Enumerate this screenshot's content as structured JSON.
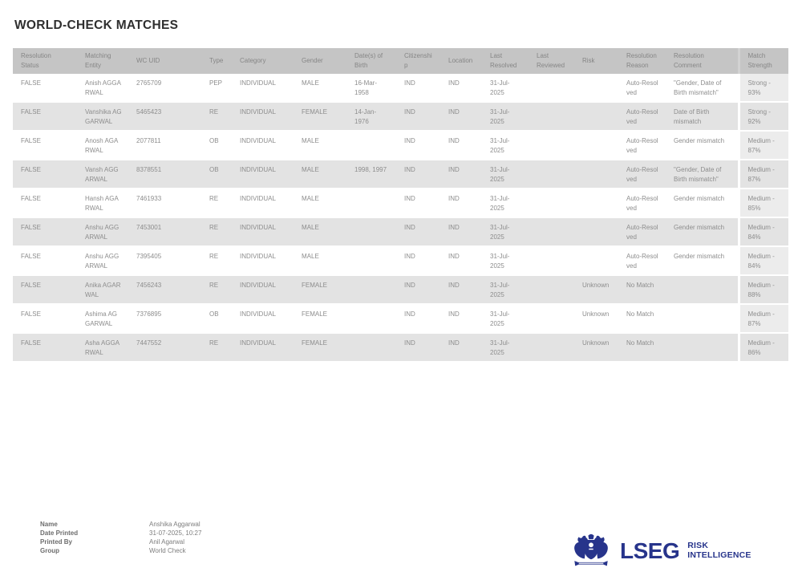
{
  "page": {
    "title": "WORLD-CHECK MATCHES"
  },
  "table": {
    "columns": [
      {
        "key": "resolution_status",
        "label": "Resolution Status"
      },
      {
        "key": "matching_entity",
        "label": "Matching Entity"
      },
      {
        "key": "wc_uid",
        "label": "WC UID"
      },
      {
        "key": "type",
        "label": "Type"
      },
      {
        "key": "category",
        "label": "Category"
      },
      {
        "key": "gender",
        "label": "Gender"
      },
      {
        "key": "date_of_birth",
        "label": "Date(s) of Birth"
      },
      {
        "key": "citizenship",
        "label": "Citizenship"
      },
      {
        "key": "location",
        "label": "Location"
      },
      {
        "key": "last_resolved",
        "label": "Last Resolved"
      },
      {
        "key": "last_reviewed",
        "label": "Last Reviewed"
      },
      {
        "key": "risk",
        "label": "Risk"
      },
      {
        "key": "resolution_reason",
        "label": "Resolution Reason"
      },
      {
        "key": "resolution_comment",
        "label": "Resolution Comment"
      },
      {
        "key": "match_strength",
        "label": "Match Strength"
      }
    ],
    "rows": [
      {
        "cells": [
          "FALSE",
          "Anish AGGARWAL",
          "2765709",
          "PEP",
          "INDIVIDUAL",
          "MALE",
          "16-Mar-1958",
          "IND",
          "IND",
          "31-Jul-2025",
          "",
          "",
          "Auto-Resolved",
          "\"Gender, Date of Birth mismatch\"",
          "Strong - 93%"
        ]
      },
      {
        "cells": [
          "FALSE",
          "Vanshika AGGARWAL",
          "5465423",
          "RE",
          "INDIVIDUAL",
          "FEMALE",
          "14-Jan-1976",
          "IND",
          "IND",
          "31-Jul-2025",
          "",
          "",
          "Auto-Resolved",
          "Date of Birth mismatch",
          "Strong - 92%"
        ]
      },
      {
        "cells": [
          "FALSE",
          "Anosh AGARWAL",
          "2077811",
          "OB",
          "INDIVIDUAL",
          "MALE",
          "",
          "IND",
          "IND",
          "31-Jul-2025",
          "",
          "",
          "Auto-Resolved",
          "Gender mismatch",
          "Medium - 87%"
        ]
      },
      {
        "cells": [
          "FALSE",
          "Vansh AGGARWAL",
          "8378551",
          "OB",
          "INDIVIDUAL",
          "MALE",
          "1998, 1997",
          "IND",
          "IND",
          "31-Jul-2025",
          "",
          "",
          "Auto-Resolved",
          "\"Gender, Date of Birth mismatch\"",
          "Medium - 87%"
        ]
      },
      {
        "cells": [
          "FALSE",
          "Hansh AGARWAL",
          "7461933",
          "RE",
          "INDIVIDUAL",
          "MALE",
          "",
          "IND",
          "IND",
          "31-Jul-2025",
          "",
          "",
          "Auto-Resolved",
          "Gender mismatch",
          "Medium - 85%"
        ]
      },
      {
        "cells": [
          "FALSE",
          "Anshu AGGARWAL",
          "7453001",
          "RE",
          "INDIVIDUAL",
          "MALE",
          "",
          "IND",
          "IND",
          "31-Jul-2025",
          "",
          "",
          "Auto-Resolved",
          "Gender mismatch",
          "Medium - 84%"
        ]
      },
      {
        "cells": [
          "FALSE",
          "Anshu AGGARWAL",
          "7395405",
          "RE",
          "INDIVIDUAL",
          "MALE",
          "",
          "IND",
          "IND",
          "31-Jul-2025",
          "",
          "",
          "Auto-Resolved",
          "Gender mismatch",
          "Medium - 84%"
        ]
      },
      {
        "cells": [
          "FALSE",
          "Anika AGARWAL",
          "7456243",
          "RE",
          "INDIVIDUAL",
          "FEMALE",
          "",
          "IND",
          "IND",
          "31-Jul-2025",
          "",
          "Unknown",
          "No Match",
          "",
          "Medium - 88%"
        ]
      },
      {
        "cells": [
          "FALSE",
          "Ashima AGGARWAL",
          "7376895",
          "OB",
          "INDIVIDUAL",
          "FEMALE",
          "",
          "IND",
          "IND",
          "31-Jul-2025",
          "",
          "Unknown",
          "No Match",
          "",
          "Medium - 87%"
        ]
      },
      {
        "cells": [
          "FALSE",
          "Asha AGGARWAL",
          "7447552",
          "RE",
          "INDIVIDUAL",
          "FEMALE",
          "",
          "IND",
          "IND",
          "31-Jul-2025",
          "",
          "Unknown",
          "No Match",
          "",
          "Medium - 86%"
        ]
      }
    ]
  },
  "footer": {
    "meta": [
      {
        "label": "Name",
        "value": "Anshika Aggarwal"
      },
      {
        "label": "Date Printed",
        "value": "31-07-2025, 10:27"
      },
      {
        "label": "Printed By",
        "value": "Anil Agarwal"
      },
      {
        "label": "Group",
        "value": "World Check"
      }
    ],
    "logo": {
      "brand": "LSEG",
      "tagline_line1": "RISK",
      "tagline_line2": "INTELLIGENCE",
      "crest_icon": "lseg-crest-icon"
    }
  },
  "colors": {
    "brand_navy": "#27348B",
    "header_bg": "#c5c5c5",
    "row_stripe": "#e3e3e3",
    "match_cell_bg": "#ececec",
    "header_text": "#868686",
    "body_text": "#8d8d8d",
    "title_text": "#2f2f2f"
  }
}
